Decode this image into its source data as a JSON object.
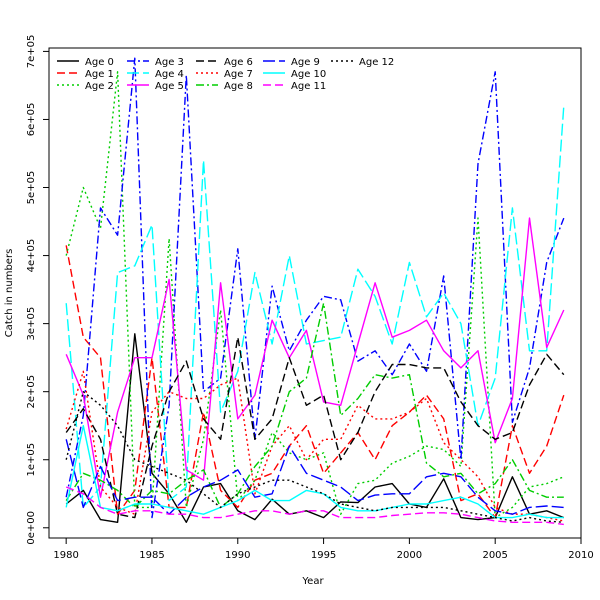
{
  "chart_data": {
    "type": "line",
    "title": "",
    "xlabel": "Year",
    "ylabel": "Catch in numbers",
    "xlim": [
      1979,
      2010
    ],
    "ylim": [
      -15000,
      705000
    ],
    "x_ticks": [
      1980,
      1985,
      1990,
      1995,
      2000,
      2005,
      2010
    ],
    "x_tick_labels": [
      "1980",
      "1985",
      "1990",
      "1995",
      "2000",
      "2005",
      "2010"
    ],
    "y_ticks": [
      0,
      100000,
      200000,
      300000,
      400000,
      500000,
      600000,
      700000
    ],
    "y_tick_labels": [
      "0e+00",
      "1e+05",
      "2e+05",
      "3e+05",
      "4e+05",
      "5e+05",
      "6e+05",
      "7e+05"
    ],
    "legend_position": "top-left",
    "years": [
      1980,
      1981,
      1982,
      1983,
      1984,
      1985,
      1986,
      1987,
      1988,
      1989,
      1990,
      1991,
      1992,
      1993,
      1994,
      1995,
      1996,
      1997,
      1998,
      1999,
      2000,
      2001,
      2002,
      2003,
      2004,
      2005,
      2006,
      2007,
      2008,
      2009
    ],
    "series": [
      {
        "name": "Age 0",
        "color": "#000000",
        "dash": "solid",
        "values": [
          35000,
          55000,
          12000,
          8000,
          285000,
          80000,
          50000,
          8000,
          60000,
          65000,
          25000,
          12000,
          42000,
          20000,
          25000,
          15000,
          38000,
          37000,
          60000,
          65000,
          35000,
          30000,
          72000,
          15000,
          12000,
          15000,
          75000,
          20000,
          25000,
          15000
        ]
      },
      {
        "name": "Age 1",
        "color": "#ff0000",
        "dash": "dashed",
        "values": [
          415000,
          280000,
          250000,
          20000,
          55000,
          250000,
          30000,
          30000,
          170000,
          55000,
          30000,
          70000,
          80000,
          120000,
          150000,
          80000,
          110000,
          140000,
          100000,
          150000,
          170000,
          195000,
          160000,
          40000,
          50000,
          15000,
          150000,
          80000,
          120000,
          195000
        ]
      },
      {
        "name": "Age 2",
        "color": "#00cd00",
        "dash": "dotted",
        "values": [
          400000,
          500000,
          440000,
          670000,
          30000,
          30000,
          425000,
          30000,
          130000,
          320000,
          40000,
          70000,
          140000,
          110000,
          100000,
          110000,
          20000,
          65000,
          70000,
          95000,
          105000,
          120000,
          115000,
          90000,
          455000,
          15000,
          30000,
          60000,
          65000,
          75000
        ]
      },
      {
        "name": "Age 3",
        "color": "#0000ff",
        "dash": "dashdot",
        "values": [
          45000,
          165000,
          470000,
          430000,
          690000,
          15000,
          180000,
          665000,
          200000,
          220000,
          410000,
          130000,
          355000,
          260000,
          305000,
          340000,
          335000,
          245000,
          260000,
          225000,
          270000,
          230000,
          370000,
          100000,
          535000,
          670000,
          155000,
          235000,
          390000,
          455000
        ]
      },
      {
        "name": "Age 4",
        "color": "#00ffff",
        "dash": "longdash",
        "values": [
          330000,
          30000,
          60000,
          375000,
          385000,
          445000,
          40000,
          60000,
          540000,
          170000,
          230000,
          375000,
          270000,
          400000,
          270000,
          275000,
          280000,
          380000,
          340000,
          270000,
          390000,
          310000,
          345000,
          300000,
          150000,
          220000,
          470000,
          260000,
          260000,
          620000
        ]
      },
      {
        "name": "Age 5",
        "color": "#ff00ff",
        "dash": "solid",
        "values": [
          255000,
          195000,
          45000,
          170000,
          250000,
          250000,
          365000,
          85000,
          70000,
          360000,
          160000,
          195000,
          305000,
          250000,
          290000,
          185000,
          180000,
          270000,
          360000,
          280000,
          290000,
          305000,
          260000,
          235000,
          260000,
          125000,
          190000,
          455000,
          265000,
          320000
        ]
      },
      {
        "name": "Age 6",
        "color": "#000000",
        "dash": "dashed",
        "values": [
          140000,
          175000,
          130000,
          20000,
          15000,
          120000,
          200000,
          245000,
          160000,
          130000,
          280000,
          130000,
          160000,
          250000,
          180000,
          195000,
          100000,
          140000,
          200000,
          240000,
          240000,
          235000,
          235000,
          185000,
          150000,
          130000,
          140000,
          210000,
          255000,
          225000
        ]
      },
      {
        "name": "Age 7",
        "color": "#ff0000",
        "dash": "dotted",
        "values": [
          145000,
          230000,
          60000,
          30000,
          20000,
          170000,
          200000,
          190000,
          190000,
          210000,
          220000,
          50000,
          120000,
          150000,
          100000,
          130000,
          130000,
          180000,
          160000,
          160000,
          170000,
          190000,
          125000,
          100000,
          75000,
          30000,
          20000,
          20000,
          15000,
          10000
        ]
      },
      {
        "name": "Age 8",
        "color": "#00cd00",
        "dash": "dashdot",
        "values": [
          40000,
          80000,
          70000,
          55000,
          30000,
          55000,
          50000,
          70000,
          85000,
          30000,
          50000,
          90000,
          120000,
          200000,
          220000,
          330000,
          165000,
          190000,
          225000,
          220000,
          225000,
          95000,
          75000,
          80000,
          50000,
          65000,
          100000,
          55000,
          45000,
          45000
        ]
      },
      {
        "name": "Age 9",
        "color": "#0000ff",
        "dash": "longdash",
        "values": [
          130000,
          30000,
          90000,
          40000,
          45000,
          45000,
          20000,
          45000,
          60000,
          70000,
          85000,
          45000,
          50000,
          120000,
          80000,
          70000,
          60000,
          40000,
          48000,
          50000,
          50000,
          75000,
          80000,
          75000,
          45000,
          25000,
          20000,
          30000,
          32000,
          30000
        ]
      },
      {
        "name": "Age 10",
        "color": "#00ffff",
        "dash": "solid",
        "values": [
          30000,
          150000,
          30000,
          25000,
          35000,
          35000,
          30000,
          25000,
          20000,
          30000,
          40000,
          55000,
          40000,
          40000,
          55000,
          50000,
          30000,
          25000,
          25000,
          30000,
          35000,
          35000,
          40000,
          45000,
          35000,
          15000,
          15000,
          20000,
          15000,
          15000
        ]
      },
      {
        "name": "Age 11",
        "color": "#ff00ff",
        "dash": "dashed",
        "values": [
          60000,
          50000,
          30000,
          20000,
          25000,
          25000,
          20000,
          20000,
          15000,
          15000,
          20000,
          25000,
          25000,
          20000,
          25000,
          25000,
          15000,
          15000,
          15000,
          18000,
          20000,
          22000,
          22000,
          20000,
          15000,
          10000,
          8000,
          8000,
          8000,
          5000
        ]
      },
      {
        "name": "Age 12",
        "color": "#000000",
        "dash": "dotted",
        "values": [
          100000,
          200000,
          180000,
          150000,
          100000,
          90000,
          80000,
          70000,
          50000,
          30000,
          50000,
          60000,
          70000,
          70000,
          60000,
          50000,
          35000,
          30000,
          25000,
          30000,
          30000,
          30000,
          30000,
          25000,
          20000,
          15000,
          10000,
          15000,
          10000,
          8000
        ]
      }
    ]
  }
}
